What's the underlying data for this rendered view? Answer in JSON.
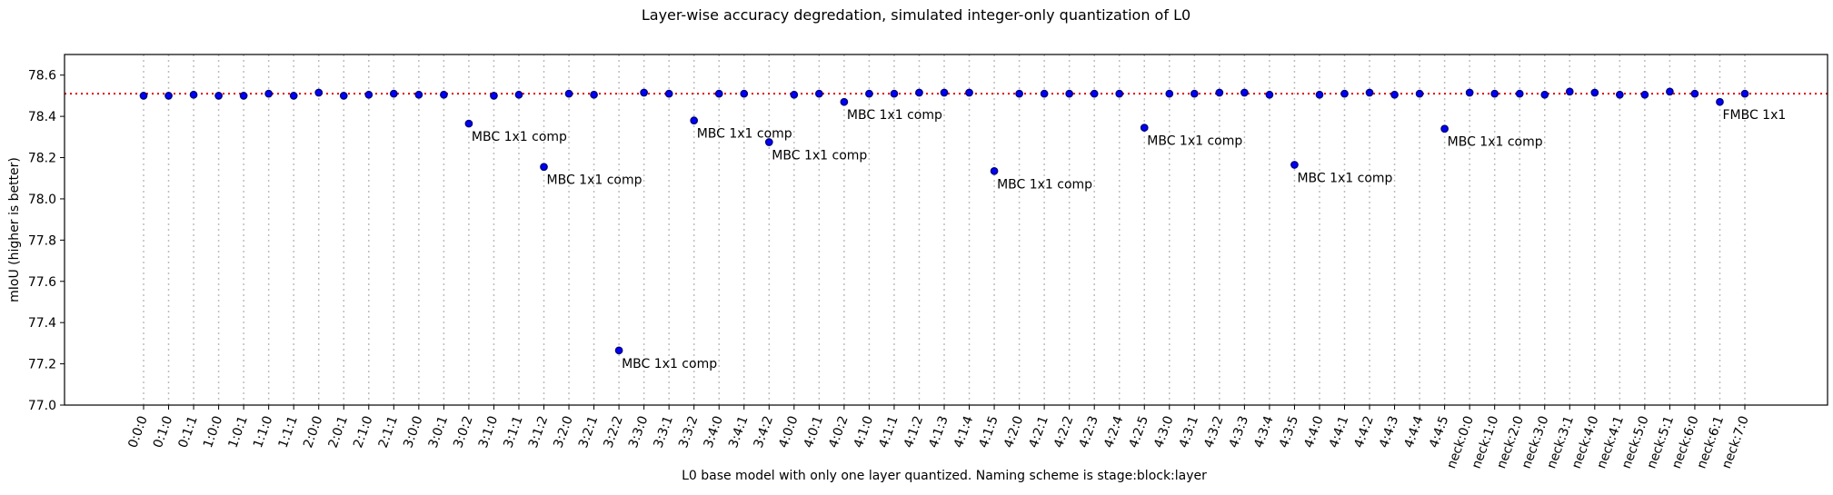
{
  "chart_data": {
    "type": "scatter",
    "title": "Layer-wise accuracy degredation, simulated integer-only quantization of L0",
    "xlabel": "L0 base model with only one layer quantized. Naming scheme is stage:block:layer",
    "ylabel": "mIoU (higher is better)",
    "ylim": [
      77.0,
      78.7
    ],
    "yticks": [
      77.0,
      77.2,
      77.4,
      77.6,
      77.8,
      78.0,
      78.2,
      78.4,
      78.6
    ],
    "reference_line": {
      "y": 78.51,
      "color": "#e00000",
      "style": "dotted"
    },
    "grid": "vertical dotted",
    "categories": [
      "0:0:0",
      "0:1:0",
      "0:1:1",
      "1:0:0",
      "1:0:1",
      "1:1:0",
      "1:1:1",
      "2:0:0",
      "2:0:1",
      "2:1:0",
      "2:1:1",
      "3:0:0",
      "3:0:1",
      "3:0:2",
      "3:1:0",
      "3:1:1",
      "3:1:2",
      "3:2:0",
      "3:2:1",
      "3:2:2",
      "3:3:0",
      "3:3:1",
      "3:3:2",
      "3:4:0",
      "3:4:1",
      "3:4:2",
      "4:0:0",
      "4:0:1",
      "4:0:2",
      "4:1:0",
      "4:1:1",
      "4:1:2",
      "4:1:3",
      "4:1:4",
      "4:1:5",
      "4:2:0",
      "4:2:1",
      "4:2:2",
      "4:2:3",
      "4:2:4",
      "4:2:5",
      "4:3:0",
      "4:3:1",
      "4:3:2",
      "4:3:3",
      "4:3:4",
      "4:3:5",
      "4:4:0",
      "4:4:1",
      "4:4:2",
      "4:4:3",
      "4:4:4",
      "4:4:5",
      "neck:0:0",
      "neck:1:0",
      "neck:2:0",
      "neck:3:0",
      "neck:3:1",
      "neck:4:0",
      "neck:4:1",
      "neck:5:0",
      "neck:5:1",
      "neck:6:0",
      "neck:6:1",
      "neck:7:0"
    ],
    "values": [
      78.5,
      78.5,
      78.505,
      78.5,
      78.5,
      78.51,
      78.5,
      78.515,
      78.5,
      78.505,
      78.51,
      78.505,
      78.505,
      78.365,
      78.5,
      78.505,
      78.155,
      78.51,
      78.505,
      77.265,
      78.515,
      78.51,
      78.38,
      78.51,
      78.51,
      78.275,
      78.505,
      78.51,
      78.47,
      78.51,
      78.51,
      78.515,
      78.515,
      78.515,
      78.135,
      78.51,
      78.51,
      78.51,
      78.51,
      78.51,
      78.345,
      78.51,
      78.51,
      78.515,
      78.515,
      78.505,
      78.165,
      78.505,
      78.51,
      78.515,
      78.505,
      78.51,
      78.34,
      78.515,
      78.51,
      78.51,
      78.505,
      78.52,
      78.515,
      78.505,
      78.505,
      78.52,
      78.51,
      78.47,
      78.51
    ],
    "color": "#0000ff",
    "annotations": [
      {
        "category": "3:0:2",
        "text": "MBC 1x1 comp"
      },
      {
        "category": "3:1:2",
        "text": "MBC 1x1 comp"
      },
      {
        "category": "3:2:2",
        "text": "MBC 1x1 comp"
      },
      {
        "category": "3:3:2",
        "text": "MBC 1x1 comp"
      },
      {
        "category": "3:4:2",
        "text": "MBC 1x1 comp"
      },
      {
        "category": "4:0:2",
        "text": "MBC 1x1 comp"
      },
      {
        "category": "4:1:5",
        "text": "MBC 1x1 comp"
      },
      {
        "category": "4:2:5",
        "text": "MBC 1x1 comp"
      },
      {
        "category": "4:3:5",
        "text": "MBC 1x1 comp"
      },
      {
        "category": "4:4:5",
        "text": "MBC 1x1 comp"
      },
      {
        "category": "neck:6:1",
        "text": "FMBC 1x1"
      }
    ]
  }
}
